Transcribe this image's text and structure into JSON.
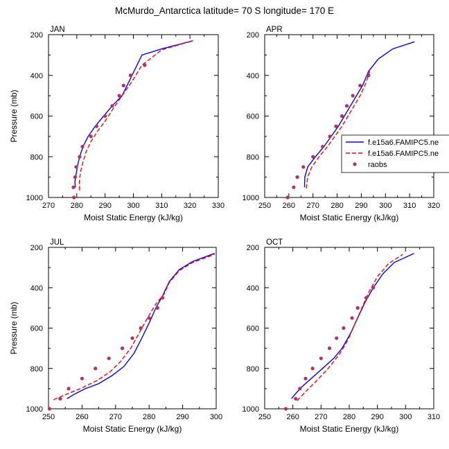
{
  "figure": {
    "title": "McMurdo_Antarctica  latitude= 70 S longitude= 170 E"
  },
  "legend": {
    "entries": [
      {
        "label": "f.e15a6.FAMIPC5.ne",
        "style": "solid",
        "color": "#0000ff"
      },
      {
        "label": "f.e15a6.FAMIPC5.ne",
        "style": "dashed",
        "color": "#ff0000"
      },
      {
        "label": "raobs",
        "style": "marker",
        "color": "#b0306a"
      }
    ]
  },
  "colors": {
    "model_solid": "#0000ff",
    "model_dashed": "#ff0000",
    "raobs": "#b0306a"
  },
  "chart_data": [
    {
      "type": "line",
      "title": "JAN",
      "xlabel": "Moist Static Energy (kJ/kg)",
      "ylabel": "Pressure (mb)",
      "xlim": [
        270,
        330
      ],
      "ylim": [
        1000,
        200
      ],
      "y_reversed": true,
      "x_ticks": [
        270,
        280,
        290,
        300,
        310,
        320,
        330
      ],
      "y_ticks": [
        200,
        400,
        600,
        800,
        1000
      ],
      "series": [
        {
          "name": "f.e15a6.FAMIPC5.ne",
          "style": "solid",
          "x": [
            279.5,
            279.3,
            279.6,
            280.2,
            281,
            282.2,
            284,
            286.5,
            289.5,
            292.5,
            296,
            299.5,
            303,
            310,
            321
          ],
          "y": [
            950,
            925,
            900,
            850,
            800,
            750,
            700,
            650,
            600,
            550,
            500,
            400,
            300,
            270,
            230
          ]
        },
        {
          "name": "f.e15a6.FAMIPC5.ne",
          "style": "dashed",
          "x": [
            281,
            280.9,
            281.3,
            282.2,
            283.3,
            285,
            287.3,
            290,
            293,
            296,
            299.5,
            303,
            310,
            321
          ],
          "y": [
            965,
            925,
            875,
            825,
            775,
            725,
            675,
            625,
            560,
            500,
            430,
            350,
            275,
            230
          ]
        },
        {
          "name": "raobs",
          "style": "marker",
          "x": [
            279,
            278.8,
            279.4,
            279.8,
            281,
            282,
            285,
            287,
            290,
            292.5,
            295,
            296.5,
            299,
            304
          ],
          "y": [
            1000,
            950,
            900,
            850,
            800,
            750,
            700,
            650,
            600,
            550,
            500,
            450,
            400,
            350
          ]
        }
      ]
    },
    {
      "type": "line",
      "title": "APR",
      "xlabel": "Moist Static Energy (kJ/kg)",
      "ylabel": "",
      "xlim": [
        250,
        320
      ],
      "ylim": [
        1000,
        200
      ],
      "y_reversed": true,
      "x_ticks": [
        250,
        260,
        270,
        280,
        290,
        300,
        310,
        320
      ],
      "y_ticks": [
        200,
        400,
        600,
        800,
        1000
      ],
      "series": [
        {
          "name": "f.e15a6.FAMIPC5.ne",
          "style": "solid",
          "x": [
            266.5,
            266.6,
            267.8,
            271,
            274.5,
            277.5,
            280.5,
            283,
            285.5,
            288,
            290.5,
            293,
            297,
            303,
            312
          ],
          "y": [
            950,
            900,
            850,
            800,
            750,
            700,
            650,
            600,
            550,
            500,
            450,
            380,
            320,
            270,
            235
          ]
        },
        {
          "name": "f.e15a6.FAMIPC5.ne",
          "style": "dashed",
          "x": [
            267.2,
            267.8,
            269.5,
            272.5,
            276,
            279,
            282,
            284.5,
            287,
            289.5,
            291.8,
            293.5
          ],
          "y": [
            955,
            900,
            850,
            800,
            750,
            700,
            650,
            600,
            550,
            500,
            440,
            380
          ]
        },
        {
          "name": "raobs",
          "style": "marker",
          "x": [
            259.5,
            262,
            263.5,
            266,
            270,
            274,
            277,
            279.5,
            282,
            284,
            286.5,
            289.5,
            293
          ],
          "y": [
            1000,
            950,
            900,
            850,
            800,
            750,
            700,
            650,
            600,
            550,
            500,
            450,
            400
          ]
        }
      ]
    },
    {
      "type": "line",
      "title": "JUL",
      "xlabel": "Moist Static Energy (kJ/kg)",
      "ylabel": "Pressure (mb)",
      "xlim": [
        250,
        300
      ],
      "ylim": [
        1000,
        200
      ],
      "y_reversed": true,
      "x_ticks": [
        250,
        260,
        270,
        280,
        290,
        300
      ],
      "y_ticks": [
        200,
        400,
        600,
        800,
        1000
      ],
      "series": [
        {
          "name": "f.e15a6.FAMIPC5.ne",
          "style": "solid",
          "x": [
            255.5,
            258,
            261,
            265,
            269,
            272.5,
            275.5,
            277.8,
            280,
            282,
            284,
            286,
            289,
            293,
            299.5
          ],
          "y": [
            950,
            925,
            900,
            875,
            835,
            790,
            725,
            650,
            575,
            500,
            440,
            370,
            310,
            270,
            230
          ]
        },
        {
          "name": "f.e15a6.FAMIPC5.ne",
          "style": "dashed",
          "x": [
            251.5,
            255,
            259.5,
            264.5,
            268.5,
            271.5,
            274.5,
            277,
            279.5,
            282,
            284.5,
            286,
            289,
            293,
            299.5
          ],
          "y": [
            955,
            930,
            900,
            860,
            815,
            765,
            700,
            625,
            550,
            480,
            430,
            375,
            315,
            275,
            235
          ]
        },
        {
          "name": "raobs",
          "style": "marker",
          "x": [
            250.3,
            253.5,
            256,
            260,
            264,
            268,
            272,
            275,
            277.5,
            280,
            282.5,
            284
          ],
          "y": [
            1000,
            950,
            900,
            850,
            800,
            750,
            700,
            650,
            600,
            550,
            500,
            450
          ]
        }
      ]
    },
    {
      "type": "line",
      "title": "OCT",
      "xlabel": "Moist Static Energy (kJ/kg)",
      "ylabel": "",
      "xlim": [
        250,
        310
      ],
      "ylim": [
        1000,
        200
      ],
      "y_reversed": true,
      "x_ticks": [
        250,
        260,
        270,
        280,
        290,
        300,
        310
      ],
      "y_ticks": [
        200,
        400,
        600,
        800,
        1000
      ],
      "series": [
        {
          "name": "f.e15a6.FAMIPC5.ne",
          "style": "solid",
          "x": [
            259.5,
            262.5,
            266.5,
            270.5,
            274.5,
            277.5,
            280.5,
            283,
            285.5,
            288.5,
            292,
            296,
            303
          ],
          "y": [
            950,
            900,
            850,
            800,
            750,
            700,
            625,
            550,
            475,
            400,
            330,
            275,
            230
          ]
        },
        {
          "name": "f.e15a6.FAMIPC5.ne",
          "style": "dashed",
          "x": [
            261.5,
            264.5,
            268.5,
            272.5,
            276.5,
            279.5,
            282,
            284.5,
            287,
            290,
            294,
            299
          ],
          "y": [
            960,
            915,
            860,
            800,
            730,
            660,
            580,
            500,
            420,
            345,
            280,
            235
          ]
        },
        {
          "name": "raobs",
          "style": "marker",
          "x": [
            257.5,
            261,
            262.5,
            264.5,
            267,
            270,
            273,
            275.5,
            278,
            281,
            283,
            286,
            288.5
          ],
          "y": [
            1000,
            950,
            900,
            850,
            800,
            750,
            700,
            650,
            600,
            550,
            500,
            450,
            400
          ]
        }
      ]
    }
  ]
}
